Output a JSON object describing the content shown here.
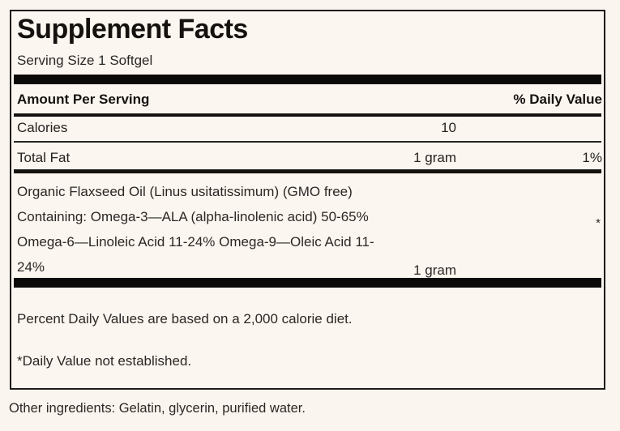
{
  "label": {
    "title": "Supplement Facts",
    "serving_size": "Serving Size 1 Softgel",
    "header": {
      "amount_col": "Amount Per Serving",
      "dv_col": "% Daily Value"
    },
    "rows": [
      {
        "name": "Calories",
        "amount": "10",
        "dv": ""
      },
      {
        "name": "Total Fat",
        "amount": "1 gram",
        "dv": "1%"
      }
    ],
    "ingredient": {
      "lines": [
        "Organic Flaxseed Oil (Linus usitatissimum) (GMO free)",
        "Containing: Omega-3—ALA (alpha-linolenic acid) 50-65%",
        "Omega-6—Linoleic Acid 11-24% Omega-9—Oleic Acid 11-",
        "24%"
      ],
      "amount": "1 gram",
      "dv": "*"
    },
    "footnotes": [
      "Percent Daily Values are based on a 2,000 calorie diet.",
      "*Daily Value not established."
    ],
    "other_ingredients": "Other ingredients: Gelatin, glycerin, purified water."
  },
  "colors": {
    "background": "#fbf5ef",
    "panel_background": "#fcf6f0",
    "text": "#2b2725",
    "heading_text": "#14110f",
    "rule": "#0b0a09",
    "border": "#1c1917"
  }
}
